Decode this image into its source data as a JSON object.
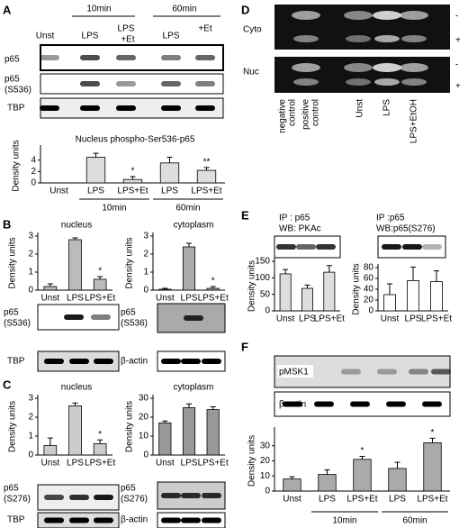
{
  "panels": {
    "a": {
      "letter": "A",
      "times": [
        "10min",
        "60min"
      ],
      "lanes": [
        "Unst",
        "LPS",
        "LPS",
        "+Et",
        "LPS",
        "+Et"
      ],
      "blots": [
        [
          "p65"
        ],
        [
          "p65",
          "(S536)"
        ],
        [
          "TBP"
        ]
      ]
    },
    "b": {
      "letter": "B",
      "blots": [
        [
          "p65",
          "(S536)"
        ],
        [
          "p65",
          "(S536)"
        ],
        [
          "TBP"
        ],
        [
          "β-actin"
        ]
      ]
    },
    "c": {
      "letter": "C",
      "blots": [
        [
          "p65",
          "(S276)"
        ],
        [
          "p65",
          "(S276)"
        ],
        [
          "TBP"
        ],
        [
          "β-actin"
        ]
      ]
    },
    "d": {
      "letter": "D",
      "rows": [
        "Cyto",
        "Nuc"
      ],
      "signs": [
        "-",
        "+",
        "-",
        "+"
      ],
      "lanes": [
        [
          "negative",
          "control"
        ],
        [
          "positive",
          "control"
        ],
        [
          "Unst"
        ],
        [
          "LPS"
        ],
        [
          "LPS+EtOH"
        ]
      ]
    },
    "e": {
      "letter": "E",
      "left": [
        "IP : p65",
        "WB: PKAc"
      ],
      "right": [
        "IP :p65",
        "WB:p65(S276)"
      ]
    },
    "f": {
      "letter": "F",
      "blots": [
        "pMSK1",
        "β-actin"
      ]
    }
  },
  "chart_data": [
    {
      "type": "bar",
      "title": "Nucleus phospho-Ser536-p65",
      "ylabel": "Density units",
      "categories": [
        "Unst",
        "LPS",
        "LPS+Et",
        "LPS",
        "LPS+Et"
      ],
      "values": [
        0,
        4.5,
        0.6,
        3.5,
        2.2
      ],
      "errors": [
        0,
        0.7,
        0.5,
        1,
        0.5
      ],
      "markers": [
        null,
        null,
        "*",
        null,
        "**"
      ],
      "groups": [
        "10min",
        "60min"
      ],
      "color": "#dddddd",
      "ylim": [
        0,
        6
      ],
      "yticks": [
        0,
        2,
        4
      ]
    },
    {
      "type": "bar",
      "title": "nucleus",
      "ylabel": "Density units",
      "categories": [
        "Unst",
        "LPS",
        "LPS+Et"
      ],
      "values": [
        0.2,
        2.8,
        0.6
      ],
      "errors": [
        0.15,
        0.1,
        0.15
      ],
      "markers": [
        null,
        null,
        "*"
      ],
      "color": "#bbbbbb",
      "ylim": [
        0,
        3
      ],
      "yticks": [
        0,
        1,
        2,
        3
      ]
    },
    {
      "type": "bar",
      "title": "cytoplasm",
      "ylabel": "Density units",
      "categories": [
        "Unst",
        "LPS",
        "LPS+Et"
      ],
      "values": [
        0.05,
        2.4,
        0.1
      ],
      "errors": [
        0.05,
        0.2,
        0.1
      ],
      "markers": [
        null,
        null,
        "*"
      ],
      "color": "#aaaaaa",
      "ylim": [
        0,
        3
      ],
      "yticks": [
        0,
        1,
        2,
        3
      ]
    },
    {
      "type": "bar",
      "title": "nucleus",
      "ylabel": "Density units",
      "categories": [
        "Unst",
        "LPS",
        "LPS+Et"
      ],
      "values": [
        0.5,
        2.6,
        0.6
      ],
      "errors": [
        0.4,
        0.15,
        0.2
      ],
      "markers": [
        null,
        null,
        "*"
      ],
      "color": "#cccccc",
      "ylim": [
        0,
        3
      ],
      "yticks": [
        0,
        1,
        2,
        3
      ]
    },
    {
      "type": "bar",
      "title": "cytoplasm",
      "ylabel": "Density units",
      "categories": [
        "Unst",
        "LPS",
        "LPS+Et"
      ],
      "values": [
        17,
        25,
        24
      ],
      "errors": [
        1,
        2,
        1.5
      ],
      "color": "#999999",
      "ylim": [
        0,
        30
      ],
      "yticks": [
        0,
        10,
        20,
        30
      ]
    },
    {
      "type": "bar",
      "ylabel": "Density units",
      "categories": [
        "Unst",
        "LPS",
        "LPS+Et"
      ],
      "values": [
        112,
        68,
        117
      ],
      "errors": [
        13,
        10,
        20
      ],
      "color": "#dddddd",
      "ylim": [
        0,
        150
      ],
      "yticks": [
        0,
        50,
        100,
        150
      ]
    },
    {
      "type": "bar",
      "ylabel": "Density units",
      "categories": [
        "Unst",
        "LPS",
        "LPS+Et"
      ],
      "values": [
        30,
        56,
        54
      ],
      "errors": [
        20,
        25,
        20
      ],
      "color": "#ffffff",
      "ylim": [
        0,
        80
      ],
      "yticks": [
        0,
        20,
        40,
        60,
        80
      ]
    },
    {
      "type": "bar",
      "ylabel": "Density units",
      "categories": [
        "Unst",
        "LPS",
        "LPS+Et",
        "LPS",
        "LPS+Et"
      ],
      "values": [
        8,
        11,
        21,
        15,
        32
      ],
      "errors": [
        1.5,
        3,
        2,
        4,
        3
      ],
      "markers": [
        null,
        null,
        "*",
        null,
        "*"
      ],
      "groups": [
        "10min",
        "60min"
      ],
      "color": "#aaaaaa",
      "ylim": [
        0,
        40
      ],
      "yticks": [
        0,
        10,
        20,
        30
      ]
    }
  ]
}
